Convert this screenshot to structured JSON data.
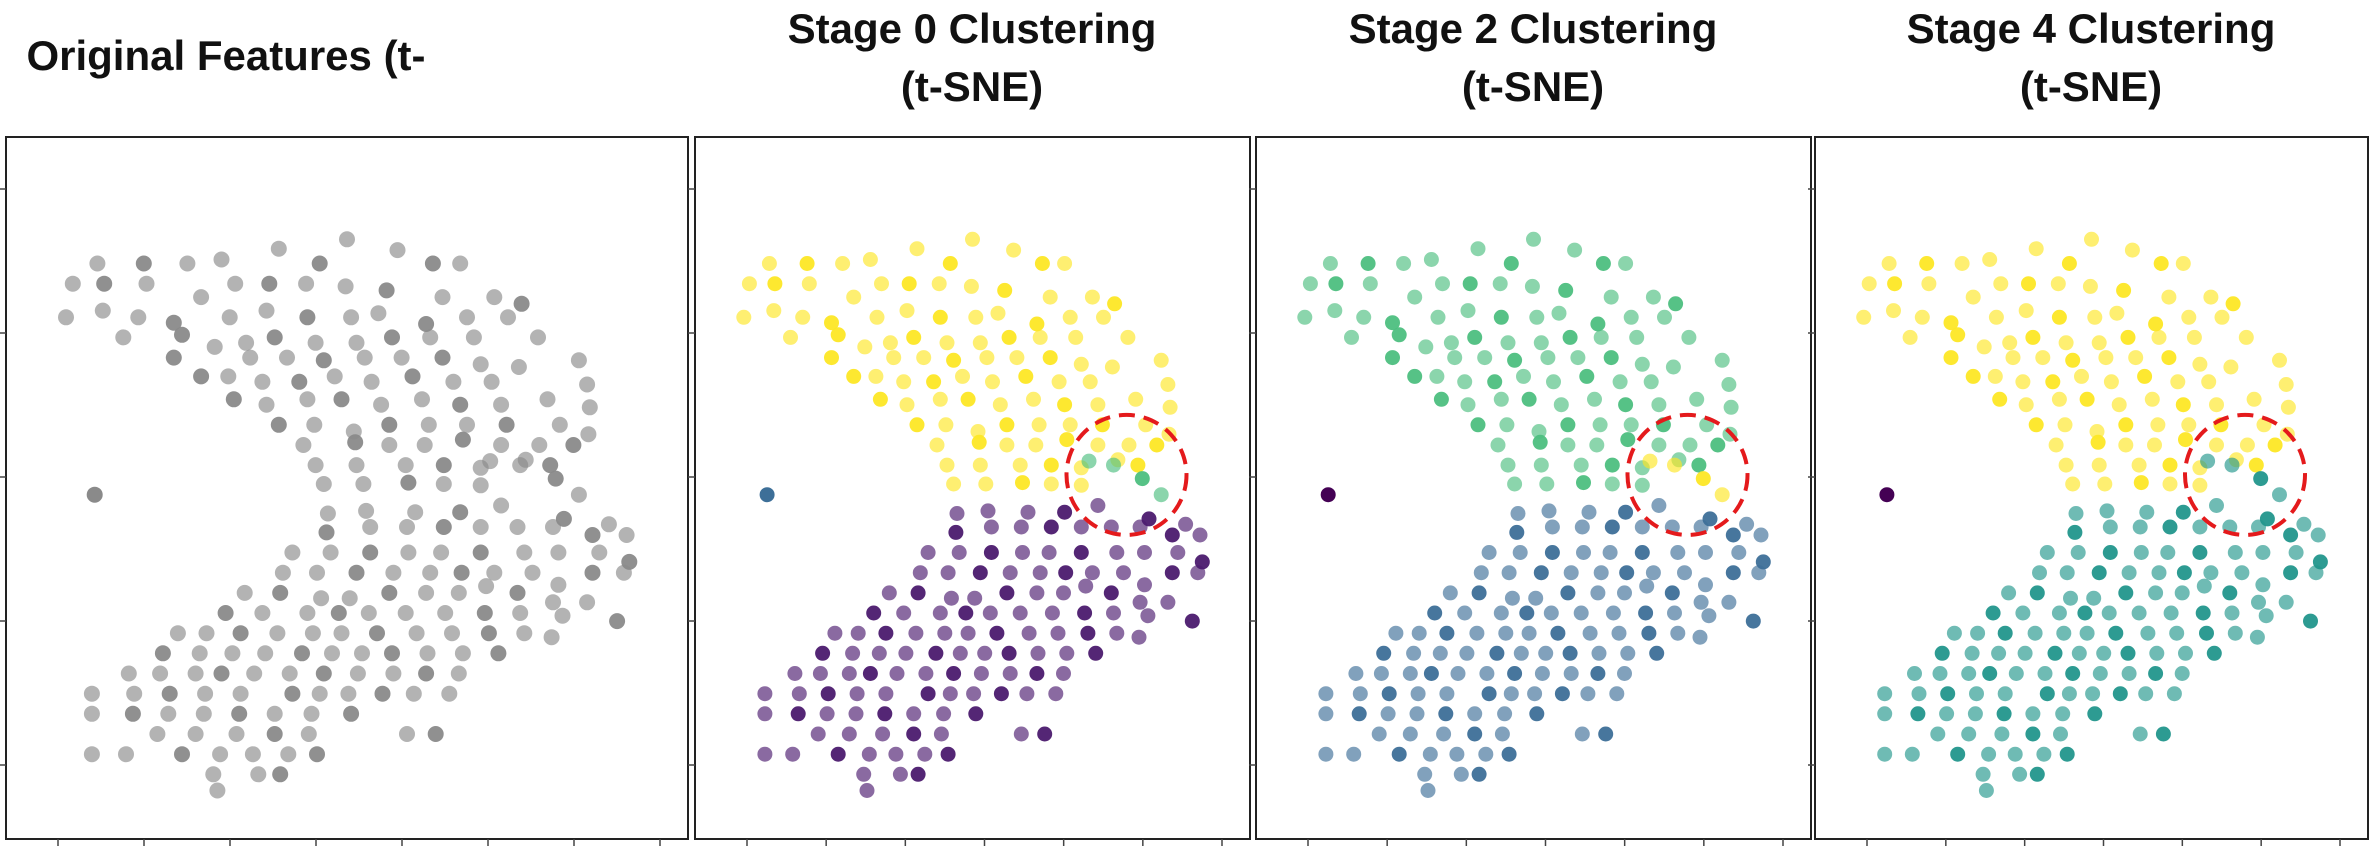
{
  "colors": {
    "gray": "#8a8a8a",
    "yellow": "#fde725",
    "purple": "#4b1a6e",
    "green": "#4dbf80",
    "blue": "#3d6f98",
    "teal": "#22968c",
    "dark": "#440154",
    "annotation": "#e41a1c"
  },
  "chart_data": [
    {
      "type": "scatter",
      "title": "Original Features (t-SNE)",
      "xlabel": "",
      "ylabel": "",
      "tick_labels": "hidden",
      "grid": false,
      "points": "shared",
      "coloring": {
        "outlier": "gray",
        "upper": "gray",
        "lower": "gray",
        "boundary": "gray"
      },
      "highlight_circle": false
    },
    {
      "type": "scatter",
      "title": "Stage 0 Clustering\n(t-SNE)",
      "xlabel": "",
      "ylabel": "",
      "tick_labels": "hidden",
      "grid": false,
      "points": "shared",
      "coloring": {
        "outlier": "blue",
        "upper": "yellow",
        "lower": "purple",
        "boundary": "green"
      },
      "highlight_circle": true
    },
    {
      "type": "scatter",
      "title": "Stage 2 Clustering\n(t-SNE)",
      "xlabel": "",
      "ylabel": "",
      "tick_labels": "hidden",
      "grid": false,
      "points": "shared",
      "coloring": {
        "outlier": "dark",
        "upper": "green",
        "lower": "blue",
        "boundary": "yellow"
      },
      "highlight_circle": true
    },
    {
      "type": "scatter",
      "title": "Stage 4 Clustering\n(t-SNE)",
      "xlabel": "",
      "ylabel": "",
      "tick_labels": "hidden",
      "grid": false,
      "points": "shared",
      "coloring": {
        "outlier": "dark",
        "upper": "yellow",
        "lower": "teal",
        "boundary": "teal"
      },
      "highlight_circle": true
    }
  ],
  "shared_points": {
    "xlim": [
      0,
      450
    ],
    "ylim": [
      0,
      470
    ],
    "outlier": [
      [
        40,
        230
      ]
    ],
    "boundary": [
      [
        330,
        255
      ],
      [
        352,
        252
      ],
      [
        378,
        242
      ],
      [
        395,
        230
      ]
    ],
    "upper": [
      [
        42,
        402
      ],
      [
        76,
        402
      ],
      [
        108,
        402
      ],
      [
        133,
        405
      ],
      [
        175,
        413
      ],
      [
        205,
        402
      ],
      [
        225,
        420
      ],
      [
        262,
        412
      ],
      [
        288,
        402
      ],
      [
        308,
        402
      ],
      [
        24,
        387
      ],
      [
        47,
        387
      ],
      [
        78,
        387
      ],
      [
        118,
        377
      ],
      [
        143,
        387
      ],
      [
        168,
        387
      ],
      [
        195,
        387
      ],
      [
        224,
        385
      ],
      [
        254,
        382
      ],
      [
        295,
        377
      ],
      [
        333,
        377
      ],
      [
        353,
        372
      ],
      [
        19,
        362
      ],
      [
        46,
        367
      ],
      [
        72,
        362
      ],
      [
        98,
        358
      ],
      [
        139,
        362
      ],
      [
        166,
        367
      ],
      [
        196,
        362
      ],
      [
        228,
        362
      ],
      [
        248,
        365
      ],
      [
        283,
        357
      ],
      [
        313,
        362
      ],
      [
        343,
        362
      ],
      [
        61,
        347
      ],
      [
        104,
        349
      ],
      [
        128,
        340
      ],
      [
        151,
        343
      ],
      [
        172,
        347
      ],
      [
        202,
        343
      ],
      [
        232,
        343
      ],
      [
        258,
        347
      ],
      [
        286,
        347
      ],
      [
        318,
        347
      ],
      [
        365,
        347
      ],
      [
        98,
        332
      ],
      [
        154,
        332
      ],
      [
        181,
        332
      ],
      [
        208,
        330
      ],
      [
        238,
        332
      ],
      [
        265,
        332
      ],
      [
        295,
        332
      ],
      [
        323,
        327
      ],
      [
        351,
        325
      ],
      [
        395,
        330
      ],
      [
        118,
        318
      ],
      [
        138,
        318
      ],
      [
        163,
        314
      ],
      [
        190,
        314
      ],
      [
        216,
        318
      ],
      [
        243,
        314
      ],
      [
        273,
        318
      ],
      [
        303,
        314
      ],
      [
        331,
        314
      ],
      [
        401,
        312
      ],
      [
        142,
        301
      ],
      [
        166,
        297
      ],
      [
        196,
        301
      ],
      [
        221,
        301
      ],
      [
        250,
        297
      ],
      [
        280,
        301
      ],
      [
        308,
        297
      ],
      [
        338,
        297
      ],
      [
        372,
        301
      ],
      [
        403,
        295
      ],
      [
        175,
        282
      ],
      [
        201,
        282
      ],
      [
        230,
        277
      ],
      [
        256,
        282
      ],
      [
        285,
        282
      ],
      [
        313,
        282
      ],
      [
        342,
        282
      ],
      [
        381,
        282
      ],
      [
        402,
        275
      ],
      [
        193,
        267
      ],
      [
        231,
        269
      ],
      [
        256,
        267
      ],
      [
        282,
        267
      ],
      [
        310,
        271
      ],
      [
        338,
        267
      ],
      [
        366,
        267
      ],
      [
        391,
        267
      ],
      [
        202,
        252
      ],
      [
        232,
        252
      ],
      [
        268,
        252
      ],
      [
        296,
        252
      ],
      [
        323,
        250
      ],
      [
        356,
        256
      ],
      [
        374,
        252
      ],
      [
        208,
        238
      ],
      [
        237,
        238
      ],
      [
        270,
        239
      ],
      [
        296,
        238
      ],
      [
        323,
        237
      ]
    ],
    "lower": [
      [
        338,
        222
      ],
      [
        308,
        217
      ],
      [
        275,
        217
      ],
      [
        239,
        218
      ],
      [
        211,
        216
      ],
      [
        384,
        212
      ],
      [
        417,
        208
      ],
      [
        430,
        200
      ],
      [
        210,
        202
      ],
      [
        242,
        206
      ],
      [
        269,
        206
      ],
      [
        296,
        206
      ],
      [
        323,
        206
      ],
      [
        350,
        206
      ],
      [
        376,
        206
      ],
      [
        405,
        200
      ],
      [
        185,
        187
      ],
      [
        213,
        187
      ],
      [
        242,
        187
      ],
      [
        270,
        187
      ],
      [
        294,
        187
      ],
      [
        323,
        187
      ],
      [
        355,
        187
      ],
      [
        380,
        187
      ],
      [
        410,
        187
      ],
      [
        432,
        180
      ],
      [
        178,
        172
      ],
      [
        203,
        172
      ],
      [
        232,
        172
      ],
      [
        259,
        172
      ],
      [
        286,
        172
      ],
      [
        309,
        172
      ],
      [
        333,
        172
      ],
      [
        361,
        172
      ],
      [
        380,
        163
      ],
      [
        405,
        172
      ],
      [
        428,
        172
      ],
      [
        150,
        157
      ],
      [
        176,
        157
      ],
      [
        206,
        153
      ],
      [
        227,
        153
      ],
      [
        256,
        157
      ],
      [
        283,
        157
      ],
      [
        307,
        157
      ],
      [
        327,
        162
      ],
      [
        350,
        157
      ],
      [
        376,
        150
      ],
      [
        401,
        150
      ],
      [
        136,
        142
      ],
      [
        163,
        142
      ],
      [
        196,
        142
      ],
      [
        219,
        142
      ],
      [
        241,
        142
      ],
      [
        268,
        142
      ],
      [
        297,
        142
      ],
      [
        326,
        142
      ],
      [
        352,
        142
      ],
      [
        383,
        140
      ],
      [
        423,
        136
      ],
      [
        101,
        127
      ],
      [
        122,
        127
      ],
      [
        147,
        127
      ],
      [
        174,
        127
      ],
      [
        200,
        127
      ],
      [
        221,
        127
      ],
      [
        247,
        127
      ],
      [
        276,
        127
      ],
      [
        302,
        127
      ],
      [
        329,
        127
      ],
      [
        355,
        127
      ],
      [
        375,
        124
      ],
      [
        90,
        112
      ],
      [
        117,
        112
      ],
      [
        141,
        112
      ],
      [
        165,
        112
      ],
      [
        192,
        112
      ],
      [
        214,
        112
      ],
      [
        236,
        112
      ],
      [
        258,
        112
      ],
      [
        284,
        112
      ],
      [
        310,
        112
      ],
      [
        336,
        112
      ],
      [
        65,
        97
      ],
      [
        88,
        97
      ],
      [
        114,
        97
      ],
      [
        133,
        97
      ],
      [
        157,
        97
      ],
      [
        183,
        97
      ],
      [
        208,
        97
      ],
      [
        233,
        97
      ],
      [
        259,
        97
      ],
      [
        283,
        97
      ],
      [
        307,
        97
      ],
      [
        38,
        82
      ],
      [
        69,
        82
      ],
      [
        95,
        82
      ],
      [
        121,
        82
      ],
      [
        147,
        82
      ],
      [
        185,
        82
      ],
      [
        205,
        82
      ],
      [
        226,
        82
      ],
      [
        251,
        82
      ],
      [
        274,
        82
      ],
      [
        300,
        82
      ],
      [
        38,
        67
      ],
      [
        68,
        67
      ],
      [
        94,
        67
      ],
      [
        120,
        67
      ],
      [
        146,
        67
      ],
      [
        172,
        67
      ],
      [
        199,
        67
      ],
      [
        228,
        67
      ],
      [
        86,
        52
      ],
      [
        114,
        52
      ],
      [
        144,
        52
      ],
      [
        172,
        52
      ],
      [
        197,
        52
      ],
      [
        269,
        52
      ],
      [
        290,
        52
      ],
      [
        38,
        37
      ],
      [
        63,
        37
      ],
      [
        104,
        37
      ],
      [
        132,
        37
      ],
      [
        156,
        37
      ],
      [
        182,
        37
      ],
      [
        203,
        37
      ],
      [
        127,
        22
      ],
      [
        160,
        22
      ],
      [
        176,
        22
      ],
      [
        130,
        10
      ]
    ]
  }
}
